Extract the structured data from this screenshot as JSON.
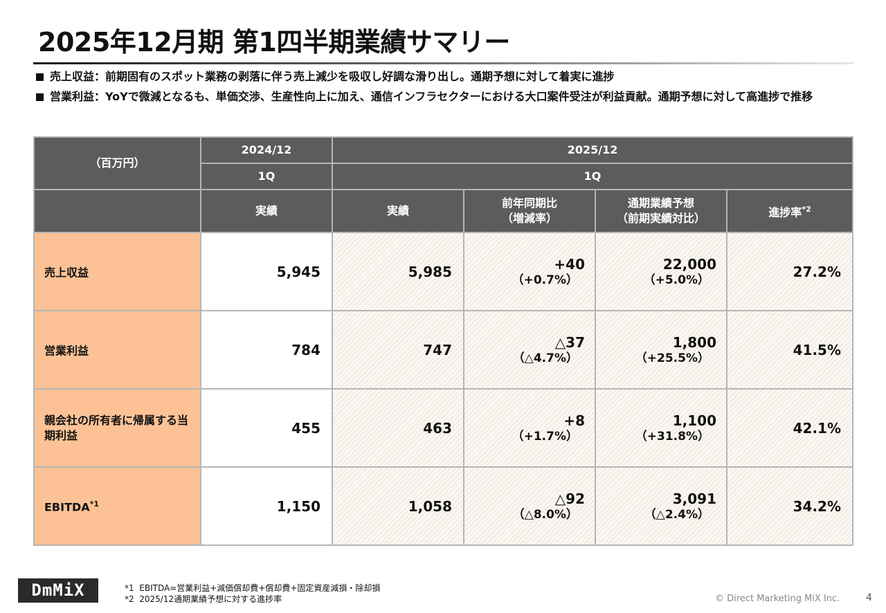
{
  "title": "2025年12月期 第1四半期業績サマリー",
  "bullets": [
    "売上収益：前期固有のスポット業務の剥落に伴う売上減少を吸収し好調な滑り出し。通期予想に対して着実に進捗",
    "営業利益：YoYで微減となるも、単価交渉、生産性向上に加え、通信インフラセクターにおける大口案件受注が利益貢献。通期予想に対して高進捗で推移"
  ],
  "table": {
    "unit_label": "（百万円）",
    "period_prev": "2024/12",
    "period_curr": "2025/12",
    "quarter_prev": "1Q",
    "quarter_curr": "1Q",
    "col_actual_prev": "実績",
    "col_actual_curr": "実績",
    "col_yoy_line1": "前年同期比",
    "col_yoy_line2": "（増減率）",
    "col_forecast_line1": "通期業績予想",
    "col_forecast_line2": "（前期実績対比）",
    "col_progress": "進捗率",
    "col_progress_note": "*2",
    "rows": [
      {
        "label": "売上収益",
        "label_note": "",
        "prev": "5,945",
        "curr": "5,985",
        "yoy": "+40",
        "yoy_rate": "（+0.7%）",
        "forecast": "22,000",
        "forecast_rate": "（+5.0%）",
        "progress": "27.2%"
      },
      {
        "label": "営業利益",
        "label_note": "",
        "prev": "784",
        "curr": "747",
        "yoy": "△37",
        "yoy_rate": "（△4.7%）",
        "forecast": "1,800",
        "forecast_rate": "（+25.5%）",
        "progress": "41.5%"
      },
      {
        "label": "親会社の所有者に帰属する当期利益",
        "label_note": "",
        "prev": "455",
        "curr": "463",
        "yoy": "+8",
        "yoy_rate": "（+1.7%）",
        "forecast": "1,100",
        "forecast_rate": "（+31.8%）",
        "progress": "42.1%"
      },
      {
        "label": "EBITDA",
        "label_note": "*1",
        "prev": "1,150",
        "curr": "1,058",
        "yoy": "△92",
        "yoy_rate": "（△8.0%）",
        "forecast": "3,091",
        "forecast_rate": "（△2.4%）",
        "progress": "34.2%"
      }
    ]
  },
  "footnotes": [
    "*1  EBITDA=営業利益+減価償却費+償却費+固定資産減損・除却損",
    "*2  2025/12通期業績予想に対する進捗率"
  ],
  "logo_text": "DmMiX",
  "copyright": "© Direct Marketing MiX Inc.",
  "page_number": "4"
}
